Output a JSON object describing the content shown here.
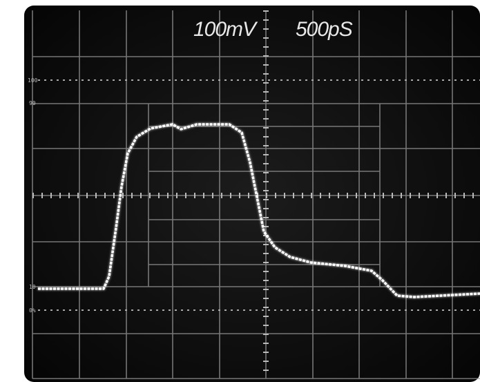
{
  "header": {
    "volts_per_div": "100mV",
    "time_per_div": "500pS"
  },
  "scale_labels": [
    "100",
    "90",
    "10",
    "0%"
  ]
}
